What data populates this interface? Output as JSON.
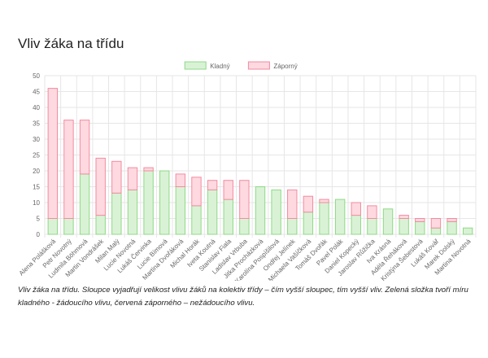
{
  "page": {
    "title": "Vliv žáka na třídu",
    "caption": "Vliv žáka na třídu. Sloupce vyjadřují velikost vlivu žáků na kolektiv třídy – čím vyšší sloupec, tím vyšší vliv. Zelená složka tvoří míru kladného - žádoucího vlivu, červená záporného – nežádoucího vlivu."
  },
  "chart_data": {
    "type": "bar",
    "stacked": true,
    "categories": [
      "Alena Polášková",
      "Petr Novotný",
      "Ludmila Böhmová",
      "Martin Vondrášek",
      "Milan Malý",
      "Lucie Novotná",
      "Lukáš Červinka",
      "Lucie Bímová",
      "Martina Dvořáková",
      "Michal Horák",
      "Iveta Koutná",
      "Stanislav Fiala",
      "Ladislav Vrbuba",
      "Jitka Procházková",
      "Karolína Pospíšilová",
      "Ondřej Jelínek",
      "Michaela Vašíčková",
      "Tomáš Dvořák",
      "Pavel Polák",
      "Daniel Kopecký",
      "Jaroslav Růžička",
      "Iva Krásná",
      "Adéla Řeháková",
      "Kristýna Šebestová",
      "Lukáš Kovář",
      "Marek Dolský",
      "Martina Novotná"
    ],
    "series": [
      {
        "name": "Kladný",
        "color_fill": "#d9f2d5",
        "color_stroke": "#8fd986",
        "values": [
          5,
          5,
          19,
          6,
          13,
          14,
          20,
          20,
          15,
          9,
          14,
          11,
          5,
          15,
          14,
          5,
          7,
          10,
          11,
          6,
          5,
          8,
          5,
          4,
          2,
          4,
          2
        ]
      },
      {
        "name": "Záporný",
        "color_fill": "#ffd9e0",
        "color_stroke": "#f28ba0",
        "values": [
          41,
          31,
          17,
          18,
          10,
          7,
          1,
          0,
          4,
          9,
          3,
          6,
          12,
          0,
          0,
          9,
          5,
          1,
          0,
          4,
          4,
          0,
          1,
          1,
          3,
          1,
          0
        ]
      }
    ],
    "title": "",
    "xlabel": "",
    "ylabel": "",
    "ylim": [
      0,
      50
    ],
    "yticks": [
      0,
      5,
      10,
      15,
      20,
      25,
      30,
      35,
      40,
      45,
      50
    ],
    "grid": true,
    "legend_position": "top"
  }
}
